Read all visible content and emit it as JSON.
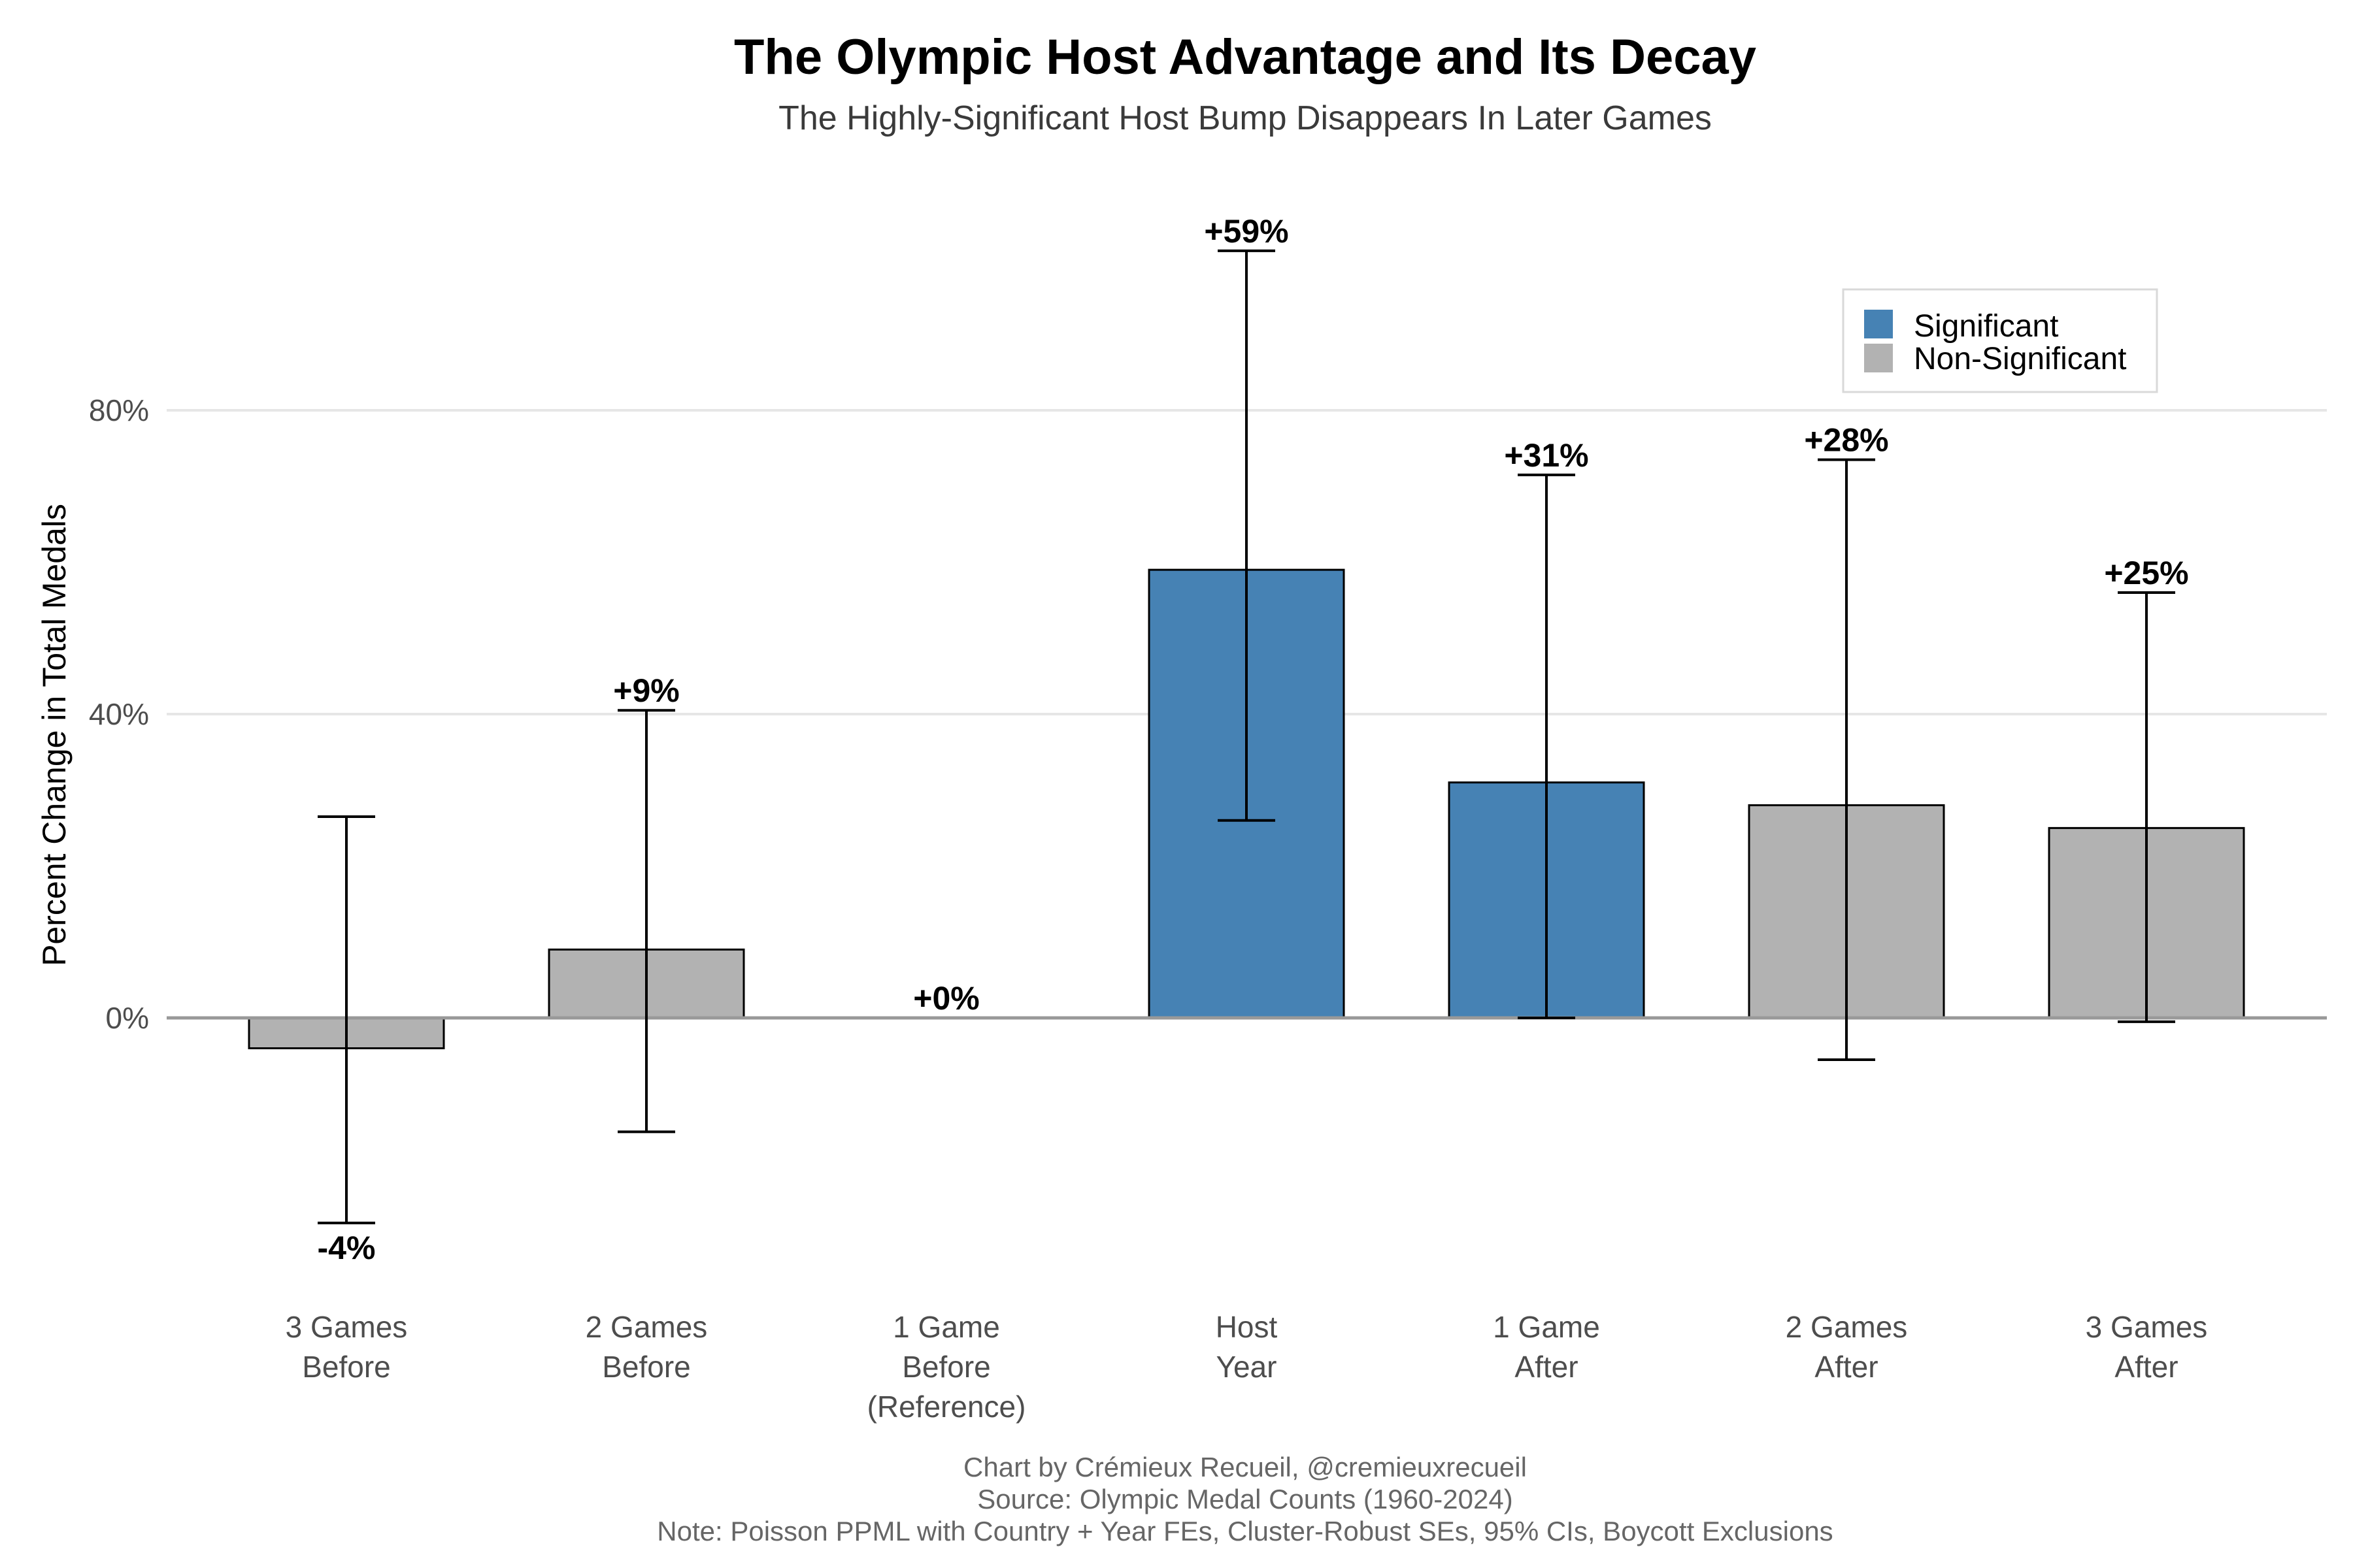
{
  "colors": {
    "significant": "#4682b4",
    "non_significant": "#b2b2b2",
    "grid": "#e6e6e6",
    "zero_line": "#999999"
  },
  "chart_data": {
    "type": "bar",
    "title": "The Olympic Host Advantage and Its Decay",
    "subtitle": "The Highly-Significant Host Bump Disappears In Later Games",
    "xlabel": "",
    "ylabel": "Percent Change in Total Medals",
    "ylim": [
      -34,
      110
    ],
    "yticks": [
      {
        "value": 0,
        "label": "0%"
      },
      {
        "value": 40,
        "label": "40%"
      },
      {
        "value": 80,
        "label": "80%"
      }
    ],
    "grid": true,
    "categories": [
      [
        "3 Games",
        "Before"
      ],
      [
        "2 Games",
        "Before"
      ],
      [
        "1 Game",
        "Before",
        "(Reference)"
      ],
      [
        "Host",
        "Year"
      ],
      [
        "1 Game",
        "After"
      ],
      [
        "2 Games",
        "After"
      ],
      [
        "3 Games",
        "After"
      ]
    ],
    "values": [
      -4,
      9,
      0,
      59,
      31,
      28,
      25
    ],
    "ci_low": [
      -27,
      -15,
      0,
      26,
      0,
      -5.5,
      -0.5
    ],
    "ci_high": [
      26.5,
      40.5,
      0,
      101,
      71.5,
      73.5,
      56
    ],
    "labels": [
      "-4%",
      "+9%",
      "+0%",
      "+59%",
      "+31%",
      "+28%",
      "+25%"
    ],
    "significance": [
      "Non-Significant",
      "Non-Significant",
      "Non-Significant",
      "Significant",
      "Significant",
      "Non-Significant",
      "Non-Significant"
    ],
    "legend": {
      "position": "top-right",
      "entries": [
        {
          "label": "Significant",
          "key": "significant"
        },
        {
          "label": "Non-Significant",
          "key": "non_significant"
        }
      ]
    },
    "caption": [
      "Chart by Crémieux Recueil, @cremieuxrecueil",
      "Source: Olympic Medal Counts (1960-2024)",
      "Note: Poisson PPML with Country + Year FEs, Cluster-Robust SEs, 95% CIs, Boycott Exclusions"
    ]
  }
}
